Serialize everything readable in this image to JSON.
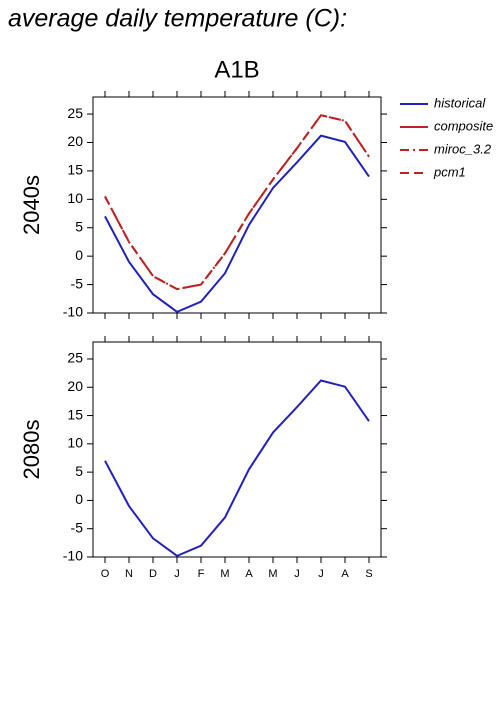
{
  "chart_data": [
    {
      "type": "line",
      "title": "average daily temperature (C):",
      "subtitle": "A1B",
      "ylabel": "2040s",
      "legend": "right",
      "categories": [
        "O",
        "N",
        "D",
        "J",
        "F",
        "M",
        "A",
        "M",
        "J",
        "J",
        "A",
        "S"
      ],
      "ylim": [
        -10,
        28
      ],
      "yticks": [
        -10,
        -5,
        0,
        5,
        10,
        15,
        20,
        25
      ],
      "series": [
        {
          "name": "historical",
          "color": "#2222bb",
          "dash": "solid",
          "values": [
            7,
            -1,
            -6.7,
            -9.8,
            -8,
            -3,
            5.5,
            12,
            16.5,
            21.2,
            20.1,
            14
          ]
        },
        {
          "name": "composite",
          "color": "#bb2222",
          "dash": "solid",
          "values": [
            null,
            null,
            null,
            null,
            null,
            null,
            null,
            null,
            null,
            null,
            null,
            null
          ]
        },
        {
          "name": "miroc_3.2",
          "color": "#bb2222",
          "dash": "dashdot",
          "values": [
            10.5,
            2.5,
            -3.5,
            -5.8,
            -5,
            0.5,
            7.5,
            13.5,
            19,
            24.8,
            23.8,
            17.5
          ]
        },
        {
          "name": "pcm1",
          "color": "#bb2222",
          "dash": "dashed",
          "values": [
            10.5,
            2.5,
            -3.5,
            -5.8,
            -5,
            0.5,
            7.5,
            13.5,
            19,
            24.8,
            23.8,
            17.5
          ]
        }
      ]
    },
    {
      "type": "line",
      "ylabel": "2080s",
      "categories": [
        "O",
        "N",
        "D",
        "J",
        "F",
        "M",
        "A",
        "M",
        "J",
        "J",
        "A",
        "S"
      ],
      "ylim": [
        -10,
        28
      ],
      "yticks": [
        -10,
        -5,
        0,
        5,
        10,
        15,
        20,
        25
      ],
      "series": [
        {
          "name": "historical",
          "color": "#2222bb",
          "dash": "solid",
          "values": [
            7,
            -1,
            -6.7,
            -9.8,
            -8,
            -3,
            5.5,
            12,
            16.5,
            21.2,
            20.1,
            14
          ]
        }
      ]
    }
  ]
}
